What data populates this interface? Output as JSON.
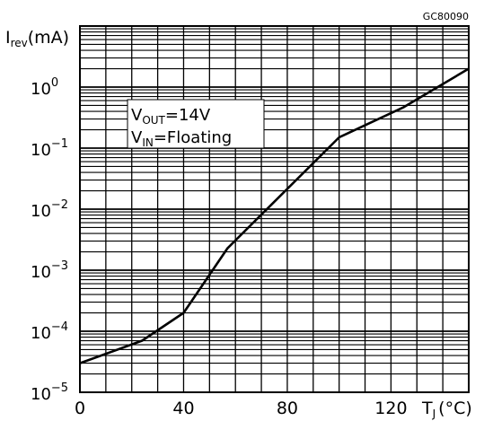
{
  "chart_data": {
    "type": "line",
    "figure_code": "GC80090",
    "x_axis": {
      "label_main": "T",
      "label_sub": "J",
      "label_unit": "(°C)",
      "range": [
        0,
        150
      ],
      "ticks": [
        0,
        40,
        80,
        120
      ],
      "tick_labels": [
        "0",
        "40",
        "80",
        "120"
      ]
    },
    "y_axis": {
      "label_main": "I",
      "label_sub": "rev",
      "label_unit": "(mA)",
      "scale": "log",
      "range": [
        1e-05,
        10
      ],
      "ticks": [
        1e-05,
        0.0001,
        0.001,
        0.01,
        0.1,
        1
      ],
      "tick_bases": [
        "10",
        "10",
        "10",
        "10",
        "10",
        "10"
      ],
      "tick_exponents": [
        "−5",
        "−4",
        "−3",
        "−2",
        "−1",
        "0"
      ]
    },
    "grid": true,
    "annotation": {
      "line1_main": "V",
      "line1_sub": "OUT",
      "line1_rest": "=14V",
      "line2_main": "V",
      "line2_sub": "IN",
      "line2_rest": "=Floating"
    },
    "series": [
      {
        "x": [
          0,
          24,
          40,
          57,
          100,
          125,
          150
        ],
        "y": [
          3e-05,
          7e-05,
          0.0002,
          0.0023,
          0.15,
          0.47,
          2.0
        ]
      }
    ]
  }
}
